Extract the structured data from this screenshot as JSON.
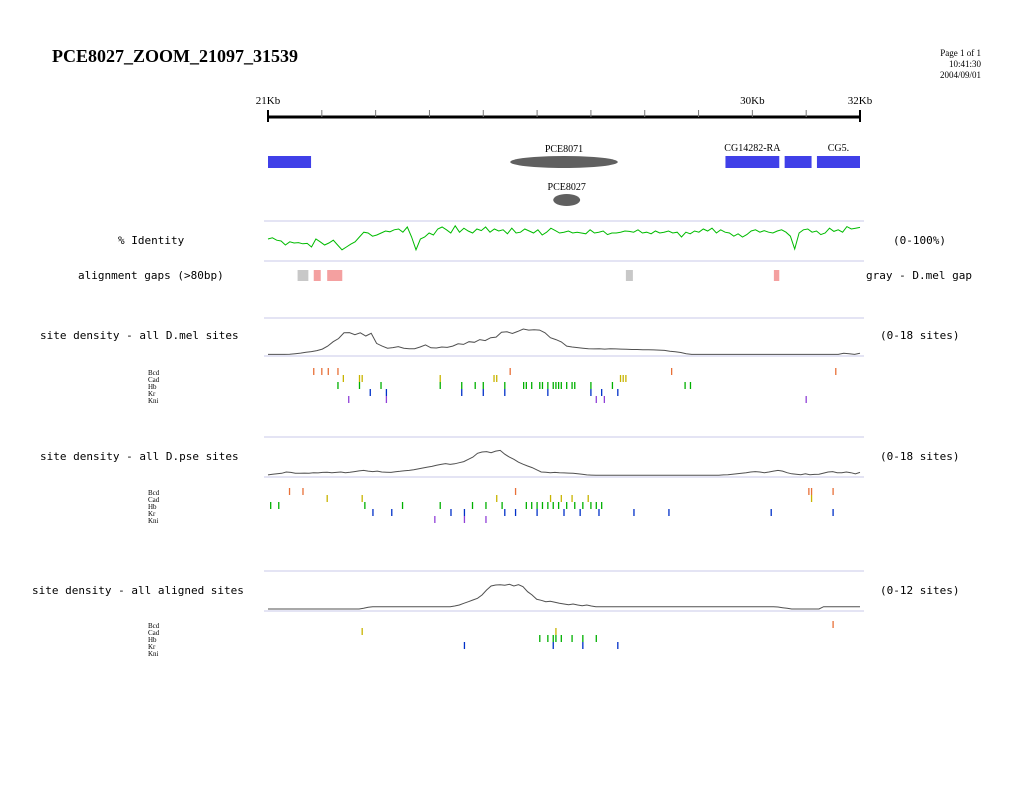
{
  "header": {
    "title": "PCE8027_ZOOM_21097_31539",
    "page": "Page 1 of 1",
    "time": "10:41:30",
    "date": "2004/09/01"
  },
  "scale": {
    "start_kb": 21,
    "end_kb": 32,
    "labels": [
      {
        "kb": 21,
        "text": "21Kb"
      },
      {
        "kb": 30,
        "text": "30Kb"
      },
      {
        "kb": 32,
        "text": "32Kb"
      }
    ]
  },
  "features": {
    "genes": [
      {
        "name": "",
        "start_kb": 21.0,
        "end_kb": 21.8
      },
      {
        "name": "CG14282-RA",
        "start_kb": 29.5,
        "end_kb": 30.5
      },
      {
        "name": "",
        "start_kb": 30.6,
        "end_kb": 31.1
      },
      {
        "name": "CG5.",
        "start_kb": 31.2,
        "end_kb": 32.0
      }
    ],
    "enhancers": [
      {
        "name": "PCE8071",
        "start_kb": 25.5,
        "end_kb": 27.5,
        "row": 0
      },
      {
        "name": "PCE8027",
        "start_kb": 26.3,
        "end_kb": 26.8,
        "row": 1
      }
    ]
  },
  "identity": {
    "label": "% Identity",
    "range": "(0-100%)",
    "color": "#00bb00",
    "values": [
      55,
      58,
      52,
      50,
      40,
      48,
      45,
      46,
      43,
      44,
      35,
      55,
      48,
      40,
      45,
      52,
      40,
      28,
      35,
      42,
      48,
      60,
      72,
      70,
      62,
      65,
      70,
      75,
      73,
      78,
      80,
      72,
      85,
      60,
      28,
      55,
      60,
      70,
      65,
      80,
      85,
      78,
      70,
      88,
      72,
      82,
      75,
      70,
      80,
      76,
      85,
      72,
      80,
      75,
      78,
      68,
      82,
      70,
      72,
      80,
      75,
      70,
      78,
      65,
      72,
      82,
      76,
      70,
      72,
      75,
      70,
      72,
      70,
      68,
      78,
      70,
      72,
      75,
      66,
      70,
      70,
      72,
      75,
      74,
      72,
      78,
      70,
      72,
      68,
      75,
      70,
      72,
      75,
      70,
      72,
      60,
      72,
      68,
      75,
      72,
      80,
      75,
      82,
      70,
      78,
      72,
      70,
      62,
      68,
      60,
      66,
      75,
      78,
      72,
      76,
      72,
      70,
      75,
      78,
      72,
      62,
      30,
      70,
      78,
      80,
      72,
      75,
      66,
      70,
      82,
      74,
      78,
      72,
      86,
      80,
      82,
      84
    ]
  },
  "gaps": {
    "label": "alignment gaps (>80bp)",
    "note": "gray - D.mel gap",
    "colors": {
      "gray": "#c8c8c8",
      "pink": "#f4a0a0"
    },
    "items": [
      {
        "start_kb": 21.55,
        "end_kb": 21.75,
        "type": "gray"
      },
      {
        "start_kb": 21.85,
        "end_kb": 21.98,
        "type": "pink"
      },
      {
        "start_kb": 22.1,
        "end_kb": 22.38,
        "type": "pink"
      },
      {
        "start_kb": 27.65,
        "end_kb": 27.78,
        "type": "gray"
      },
      {
        "start_kb": 30.4,
        "end_kb": 30.5,
        "type": "pink"
      }
    ]
  },
  "tracks": [
    {
      "label": "site density - all D.mel sites",
      "range": "(0-18 sites)",
      "density": [
        0.3,
        0.3,
        0.3,
        0.3,
        0.4,
        0.6,
        0.9,
        1.3,
        1.6,
        2.1,
        2.8,
        4.2,
        6.3,
        7.8,
        10.5,
        10.6,
        9.6,
        10.5,
        9.0,
        10.3,
        5.5,
        4.2,
        3.2,
        3.5,
        4.0,
        3.2,
        3.0,
        3.0,
        3.8,
        4.8,
        3.4,
        3.3,
        3.8,
        3.6,
        4.2,
        5.3,
        5.0,
        6.3,
        6.0,
        7.3,
        6.8,
        8.2,
        8.5,
        10.8,
        11.0,
        10.2,
        11.2,
        12.3,
        11.8,
        12.0,
        11.8,
        10.5,
        8.2,
        7.3,
        6.2,
        4.2,
        3.8,
        3.5,
        3.2,
        3.0,
        2.9,
        3.0,
        2.8,
        3.0,
        2.9,
        2.8,
        2.7,
        2.6,
        2.6,
        2.5,
        2.5,
        2.4,
        2.3,
        2.2,
        1.8,
        1.5,
        1.2,
        0.6,
        0.3,
        0.3,
        0.3,
        0.3,
        0.3,
        0.3,
        0.3,
        0.3,
        0.3,
        0.3,
        0.3,
        0.3,
        0.3,
        0.3,
        0.3,
        0.3,
        0.3,
        0.3,
        0.3,
        0.3,
        0.3,
        0.3,
        0.3,
        0.3,
        0.3,
        0.3,
        0.3,
        0.3,
        0.8,
        0.6,
        0.3,
        0.8
      ],
      "sites": {
        "Bcd": [
          21.85,
          22.0,
          22.12,
          22.3,
          25.5,
          28.5,
          31.55
        ],
        "Cad": [
          22.4,
          22.7,
          22.75,
          24.2,
          25.2,
          25.25,
          27.55,
          27.6,
          27.65
        ],
        "Hb": [
          22.3,
          22.7,
          23.1,
          24.2,
          24.6,
          24.85,
          25.0,
          25.4,
          25.75,
          25.8,
          25.9,
          26.05,
          26.1,
          26.2,
          26.3,
          26.35,
          26.4,
          26.45,
          26.55,
          26.65,
          26.7,
          27.0,
          27.4,
          28.75,
          28.85
        ],
        "Kr": [
          22.9,
          23.2,
          24.6,
          25.0,
          25.4,
          26.2,
          27.0,
          27.2,
          27.5
        ],
        "Kni": [
          22.5,
          23.2,
          27.1,
          27.25,
          31.0
        ]
      }
    },
    {
      "label": "site density - all D.pse sites",
      "range": "(0-18 sites)",
      "density": [
        0.5,
        0.8,
        1.0,
        1.2,
        1.8,
        1.6,
        1.2,
        1.2,
        1.3,
        1.2,
        1.5,
        1.4,
        1.6,
        1.7,
        1.5,
        1.6,
        1.8,
        1.5,
        1.7,
        2.0,
        2.3,
        2.5,
        2.2,
        2.0,
        2.2,
        1.8,
        1.7,
        1.6,
        1.9,
        2.1,
        2.4,
        2.5,
        2.8,
        3.2,
        3.6,
        4.0,
        4.3,
        4.8,
        5.2,
        5.6,
        5.2,
        5.5,
        6.0,
        6.5,
        7.5,
        8.5,
        10.2,
        10.8,
        11.0,
        10.5,
        11.2,
        11.5,
        9.8,
        8.5,
        7.5,
        6.2,
        5.3,
        4.5,
        3.8,
        2.8,
        1.8,
        1.7,
        1.5,
        1.6,
        1.5,
        1.4,
        1.3,
        1.2,
        1.0,
        0.8,
        0.5,
        0.4,
        0.3,
        0.3,
        0.3,
        0.3,
        0.3,
        0.3,
        0.3,
        0.3,
        0.3,
        0.3,
        0.3,
        0.3,
        0.3,
        0.3,
        0.3,
        0.3,
        0.3,
        0.3,
        0.3,
        0.3,
        0.3,
        0.3,
        0.3,
        0.3,
        0.3,
        0.3,
        0.3,
        0.3,
        0.5,
        0.6,
        0.8,
        1.0,
        1.2,
        1.5,
        1.8,
        2.0,
        1.8,
        1.5,
        1.8,
        2.2,
        2.5,
        2.2,
        1.5,
        1.0,
        0.8,
        0.6,
        1.0,
        0.6,
        0.7,
        0.8,
        1.3,
        1.8,
        2.0,
        1.5,
        1.5,
        1.8,
        1.5,
        1.0,
        1.6
      ],
      "sites": {
        "Bcd": [
          21.4,
          21.65,
          25.6,
          31.05,
          31.1,
          31.5
        ],
        "Cad": [
          22.1,
          22.75,
          25.25,
          26.25,
          26.45,
          26.65,
          26.95,
          31.1
        ],
        "Hb": [
          21.05,
          21.2,
          22.8,
          23.5,
          24.2,
          24.8,
          25.05,
          25.35,
          25.8,
          25.9,
          26.0,
          26.1,
          26.2,
          26.3,
          26.4,
          26.55,
          26.7,
          26.85,
          27.0,
          27.1,
          27.2
        ],
        "Kr": [
          22.95,
          23.3,
          24.4,
          24.65,
          25.4,
          25.6,
          26.0,
          26.5,
          26.8,
          27.15,
          27.8,
          28.45,
          30.35,
          31.5
        ],
        "Kni": [
          24.1,
          24.65,
          25.05
        ]
      }
    },
    {
      "label": "site density - all aligned sites",
      "range": "(0-12 sites)",
      "density": [
        0.3,
        0.3,
        0.3,
        0.3,
        0.3,
        0.3,
        0.3,
        0.3,
        0.3,
        0.3,
        0.3,
        0.3,
        0.3,
        0.3,
        0.3,
        0.3,
        0.3,
        0.3,
        0.3,
        0.3,
        0.3,
        0.5,
        0.8,
        1.0,
        1.0,
        1.0,
        1.0,
        1.0,
        1.0,
        1.0,
        1.0,
        1.0,
        1.0,
        1.0,
        1.0,
        1.0,
        1.0,
        1.0,
        1.0,
        1.0,
        1.0,
        1.2,
        1.5,
        2.0,
        2.5,
        3.0,
        3.5,
        4.5,
        6.0,
        7.2,
        7.5,
        7.6,
        7.4,
        7.7,
        7.2,
        7.6,
        7.0,
        5.5,
        4.5,
        3.2,
        2.9,
        2.5,
        2.6,
        2.3,
        2.0,
        1.8,
        1.6,
        1.8,
        1.5,
        1.3,
        1.5,
        1.2,
        1.0,
        1.0,
        1.0,
        1.0,
        1.0,
        1.0,
        1.0,
        1.0,
        1.0,
        1.0,
        1.0,
        1.0,
        1.0,
        1.0,
        1.0,
        1.0,
        1.0,
        1.0,
        1.0,
        1.0,
        1.0,
        1.0,
        1.0,
        1.0,
        1.0,
        1.0,
        1.0,
        1.0,
        1.0,
        1.0,
        1.0,
        1.0,
        1.0,
        1.0,
        1.0,
        1.0,
        1.0,
        1.0,
        1.0,
        1.0,
        0.9,
        0.7,
        0.5,
        0.3,
        0.3,
        0.3,
        0.3,
        0.3,
        0.3,
        0.3,
        1.0,
        1.0,
        1.0,
        1.0,
        1.0,
        1.0,
        1.0,
        1.0,
        1.0
      ],
      "sites": {
        "Bcd": [
          31.5
        ],
        "Cad": [
          22.75,
          26.35
        ],
        "Hb": [
          26.05,
          26.2,
          26.3,
          26.35,
          26.45,
          26.65,
          26.85,
          27.1
        ],
        "Kr": [
          24.65,
          26.3,
          26.85,
          27.5
        ],
        "Kni": []
      }
    }
  ],
  "factors": [
    {
      "name": "Bcd",
      "color": "#e87038"
    },
    {
      "name": "Cad",
      "color": "#c8b400"
    },
    {
      "name": "Hb",
      "color": "#00b000"
    },
    {
      "name": "Kr",
      "color": "#0030c8"
    },
    {
      "name": "Kni",
      "color": "#9040d8"
    }
  ],
  "colors": {
    "gene": "#4040e8",
    "enhancer": "#606060",
    "density_line": "#505050",
    "track_border": "#c8c8e8"
  }
}
